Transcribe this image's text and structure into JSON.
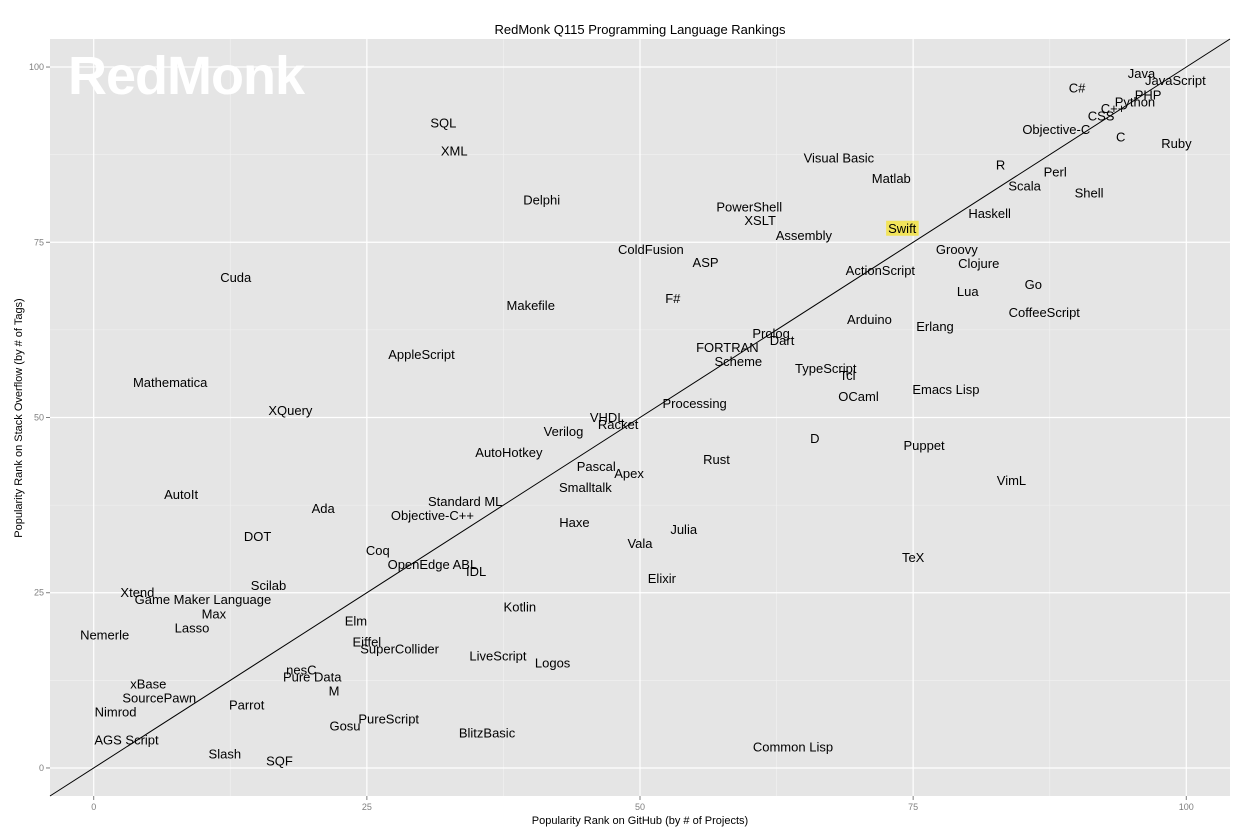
{
  "chart_data": {
    "type": "scatter",
    "title": "RedMonk Q115 Programming Language Rankings",
    "xlabel": "Popularity Rank on GitHub (by # of Projects)",
    "ylabel": "Popularity Rank on Stack Overflow (by # of Tags)",
    "xlim": [
      -4,
      104
    ],
    "ylim": [
      -4,
      104
    ],
    "xticks": [
      "0",
      "25",
      "50",
      "75",
      "100"
    ],
    "yticks": [
      "0",
      "25",
      "50",
      "75",
      "100"
    ],
    "grid": true,
    "watermark": "RedMonk",
    "reference_line": "y = x",
    "highlight": {
      "label": "Swift",
      "color": "#f2e35a"
    },
    "points": [
      {
        "label": "Java",
        "x": 95.9,
        "y": 99.1
      },
      {
        "label": "JavaScript",
        "x": 99.0,
        "y": 98.1
      },
      {
        "label": "C#",
        "x": 90.0,
        "y": 97.0
      },
      {
        "label": "PHP",
        "x": 96.5,
        "y": 96.0
      },
      {
        "label": "Python",
        "x": 95.3,
        "y": 95.0
      },
      {
        "label": "C++",
        "x": 93.3,
        "y": 94.1
      },
      {
        "label": "CSS",
        "x": 92.2,
        "y": 93.0
      },
      {
        "label": "Objective-C",
        "x": 88.1,
        "y": 91.1
      },
      {
        "label": "C",
        "x": 94.0,
        "y": 90.0
      },
      {
        "label": "Ruby",
        "x": 99.1,
        "y": 89.1
      },
      {
        "label": "R",
        "x": 83.0,
        "y": 86.0
      },
      {
        "label": "Perl",
        "x": 88.0,
        "y": 85.0
      },
      {
        "label": "Scala",
        "x": 85.2,
        "y": 83.0
      },
      {
        "label": "Shell",
        "x": 91.1,
        "y": 82.0
      },
      {
        "label": "Visual Basic",
        "x": 68.2,
        "y": 87.0
      },
      {
        "label": "Matlab",
        "x": 73.0,
        "y": 84.1
      },
      {
        "label": "Haskell",
        "x": 82.0,
        "y": 79.1
      },
      {
        "label": "SQL",
        "x": 32.0,
        "y": 92.0
      },
      {
        "label": "XML",
        "x": 33.0,
        "y": 88.0
      },
      {
        "label": "Delphi",
        "x": 41.0,
        "y": 81.0
      },
      {
        "label": "PowerShell",
        "x": 60.0,
        "y": 80.0
      },
      {
        "label": "XSLT",
        "x": 61.0,
        "y": 78.1
      },
      {
        "label": "Assembly",
        "x": 65.0,
        "y": 76.0
      },
      {
        "label": "Swift",
        "x": 74.0,
        "y": 77.0
      },
      {
        "label": "Groovy",
        "x": 79.0,
        "y": 74.0
      },
      {
        "label": "Clojure",
        "x": 81.0,
        "y": 72.0
      },
      {
        "label": "ColdFusion",
        "x": 51.0,
        "y": 74.0
      },
      {
        "label": "ASP",
        "x": 56.0,
        "y": 72.1
      },
      {
        "label": "ActionScript",
        "x": 72.0,
        "y": 71.0
      },
      {
        "label": "Cuda",
        "x": 13.0,
        "y": 70.0
      },
      {
        "label": "Lua",
        "x": 80.0,
        "y": 68.0
      },
      {
        "label": "Go",
        "x": 86.0,
        "y": 69.0
      },
      {
        "label": "F#",
        "x": 53.0,
        "y": 67.0
      },
      {
        "label": "Makefile",
        "x": 40.0,
        "y": 66.0
      },
      {
        "label": "CoffeeScript",
        "x": 87.0,
        "y": 65.0
      },
      {
        "label": "Arduino",
        "x": 71.0,
        "y": 64.0
      },
      {
        "label": "Erlang",
        "x": 77.0,
        "y": 63.0
      },
      {
        "label": "Prolog",
        "x": 62.0,
        "y": 62.0
      },
      {
        "label": "Dart",
        "x": 63.0,
        "y": 61.0
      },
      {
        "label": "FORTRAN",
        "x": 58.0,
        "y": 60.0
      },
      {
        "label": "Scheme",
        "x": 59.0,
        "y": 58.0
      },
      {
        "label": "AppleScript",
        "x": 30.0,
        "y": 59.0
      },
      {
        "label": "TypeScript",
        "x": 67.0,
        "y": 57.0
      },
      {
        "label": "Tcl",
        "x": 69.0,
        "y": 56.0
      },
      {
        "label": "Mathematica",
        "x": 7.0,
        "y": 55.0
      },
      {
        "label": "Emacs Lisp",
        "x": 78.0,
        "y": 54.0
      },
      {
        "label": "OCaml",
        "x": 70.0,
        "y": 53.0
      },
      {
        "label": "Processing",
        "x": 55.0,
        "y": 52.0
      },
      {
        "label": "XQuery",
        "x": 18.0,
        "y": 51.0
      },
      {
        "label": "VHDL",
        "x": 47.0,
        "y": 50.0
      },
      {
        "label": "Racket",
        "x": 48.0,
        "y": 49.0
      },
      {
        "label": "Verilog",
        "x": 43.0,
        "y": 48.0
      },
      {
        "label": "D",
        "x": 66.0,
        "y": 47.0
      },
      {
        "label": "Puppet",
        "x": 76.0,
        "y": 46.0
      },
      {
        "label": "AutoHotkey",
        "x": 38.0,
        "y": 45.0
      },
      {
        "label": "Rust",
        "x": 57.0,
        "y": 44.0
      },
      {
        "label": "Pascal",
        "x": 46.0,
        "y": 43.0
      },
      {
        "label": "Apex",
        "x": 49.0,
        "y": 42.0
      },
      {
        "label": "VimL",
        "x": 84.0,
        "y": 41.0
      },
      {
        "label": "Smalltalk",
        "x": 45.0,
        "y": 40.0
      },
      {
        "label": "AutoIt",
        "x": 8.0,
        "y": 39.0
      },
      {
        "label": "Standard ML",
        "x": 34.0,
        "y": 38.0
      },
      {
        "label": "Ada",
        "x": 21.0,
        "y": 37.0
      },
      {
        "label": "Objective-C++",
        "x": 31.0,
        "y": 36.0
      },
      {
        "label": "Haxe",
        "x": 44.0,
        "y": 35.0
      },
      {
        "label": "Julia",
        "x": 54.0,
        "y": 34.0
      },
      {
        "label": "DOT",
        "x": 15.0,
        "y": 33.0
      },
      {
        "label": "Vala",
        "x": 50.0,
        "y": 32.0
      },
      {
        "label": "Coq",
        "x": 26.0,
        "y": 31.0
      },
      {
        "label": "TeX",
        "x": 75.0,
        "y": 30.0
      },
      {
        "label": "OpenEdge ABL",
        "x": 31.0,
        "y": 29.0
      },
      {
        "label": "IDL",
        "x": 35.0,
        "y": 28.0
      },
      {
        "label": "Elixir",
        "x": 52.0,
        "y": 27.0
      },
      {
        "label": "Scilab",
        "x": 16.0,
        "y": 26.0
      },
      {
        "label": "Xtend",
        "x": 4.0,
        "y": 25.0
      },
      {
        "label": "Game Maker Language",
        "x": 10.0,
        "y": 24.0
      },
      {
        "label": "Kotlin",
        "x": 39.0,
        "y": 23.0
      },
      {
        "label": "Max",
        "x": 11.0,
        "y": 22.0
      },
      {
        "label": "Elm",
        "x": 24.0,
        "y": 21.0
      },
      {
        "label": "Lasso",
        "x": 9.0,
        "y": 20.0
      },
      {
        "label": "Nemerle",
        "x": 1.0,
        "y": 19.0
      },
      {
        "label": "Eiffel",
        "x": 25.0,
        "y": 18.0
      },
      {
        "label": "SuperCollider",
        "x": 28.0,
        "y": 17.0
      },
      {
        "label": "LiveScript",
        "x": 37.0,
        "y": 16.0
      },
      {
        "label": "Logos",
        "x": 42.0,
        "y": 15.0
      },
      {
        "label": "nesC",
        "x": 19.0,
        "y": 14.0
      },
      {
        "label": "Pure Data",
        "x": 20.0,
        "y": 13.0
      },
      {
        "label": "xBase",
        "x": 5.0,
        "y": 12.0
      },
      {
        "label": "M",
        "x": 22.0,
        "y": 11.0
      },
      {
        "label": "SourcePawn",
        "x": 6.0,
        "y": 10.0
      },
      {
        "label": "Parrot",
        "x": 14.0,
        "y": 9.0
      },
      {
        "label": "Nimrod",
        "x": 2.0,
        "y": 8.0
      },
      {
        "label": "PureScript",
        "x": 27.0,
        "y": 7.0
      },
      {
        "label": "Gosu",
        "x": 23.0,
        "y": 6.0
      },
      {
        "label": "BlitzBasic",
        "x": 36.0,
        "y": 5.0
      },
      {
        "label": "AGS Script",
        "x": 3.0,
        "y": 4.0
      },
      {
        "label": "Common Lisp",
        "x": 64.0,
        "y": 3.0
      },
      {
        "label": "Slash",
        "x": 12.0,
        "y": 2.0
      },
      {
        "label": "SQF",
        "x": 17.0,
        "y": 1.0
      }
    ]
  }
}
